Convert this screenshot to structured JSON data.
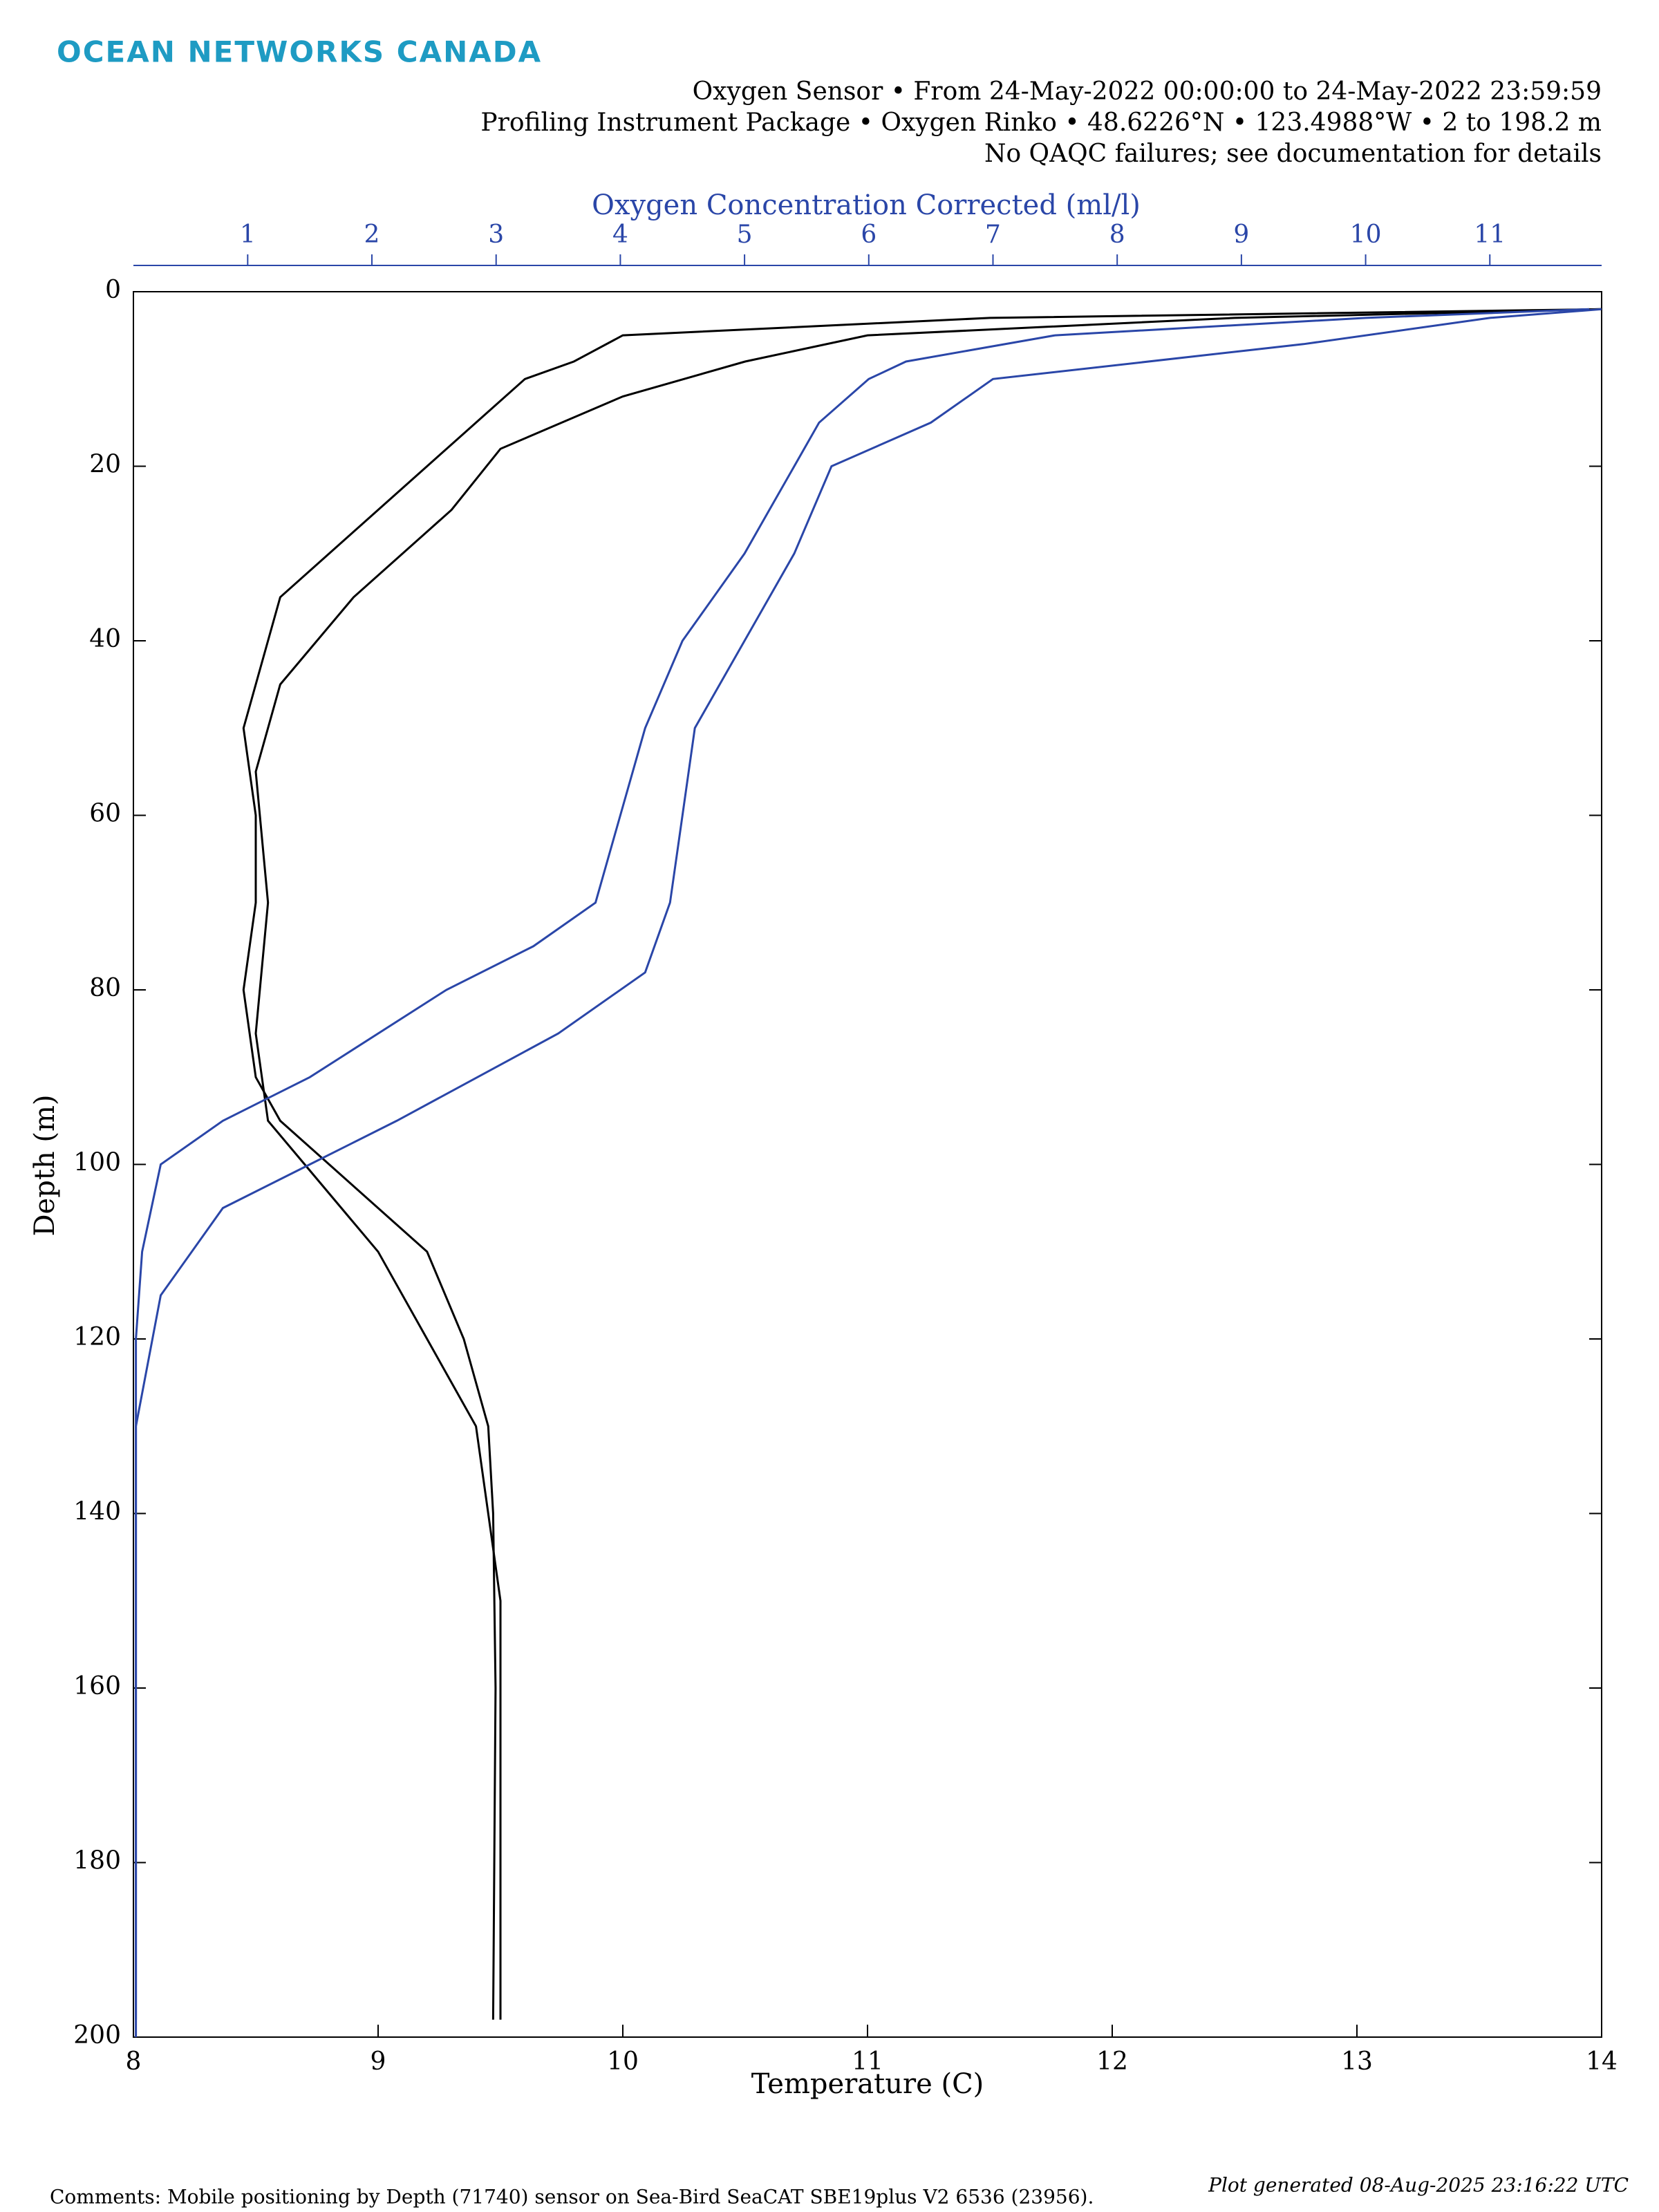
{
  "brand": "OCEAN NETWORKS CANADA",
  "chart_data": {
    "type": "line",
    "subtitle_lines": [
      "Oxygen Sensor • From 24-May-2022 00:00:00 to 24-May-2022 23:59:59",
      "Profiling Instrument Package • Oxygen Rinko • 48.6226°N • 123.4988°W • 2 to 198.2 m",
      "No QAQC failures; see documentation for details"
    ],
    "x_label": "Temperature (C)",
    "x2_label": "Oxygen Concentration Corrected (ml/l)",
    "y_label": "Depth (m)",
    "xlim": [
      8,
      14
    ],
    "xticks": [
      8,
      9,
      10,
      11,
      12,
      13,
      14
    ],
    "x2lim": [
      0.08,
      11.9
    ],
    "x2ticks": [
      1,
      2,
      3,
      4,
      5,
      6,
      7,
      8,
      9,
      10,
      11
    ],
    "ylim": [
      200,
      0
    ],
    "yticks": [
      0,
      20,
      40,
      60,
      80,
      100,
      120,
      140,
      160,
      180,
      200
    ],
    "x2_color": "#2a46a8",
    "series": [
      {
        "color": "#000000",
        "depth": [
          2,
          3,
          5,
          8,
          10,
          15,
          20,
          25,
          30,
          35,
          40,
          50,
          60,
          70,
          80,
          90,
          95,
          100,
          110,
          120,
          130,
          140,
          160,
          198
        ],
        "values": [
          14,
          11.5,
          10,
          9.8,
          9.6,
          9.4,
          9.2,
          9.0,
          8.8,
          8.6,
          8.55,
          8.45,
          8.5,
          8.5,
          8.45,
          8.5,
          8.6,
          8.8,
          9.2,
          9.35,
          9.45,
          9.47,
          9.48,
          9.47
        ]
      },
      {
        "color": "#000000",
        "depth": [
          2,
          3,
          5,
          8,
          12,
          18,
          25,
          35,
          45,
          55,
          70,
          85,
          95,
          100,
          110,
          120,
          130,
          150,
          198
        ],
        "values": [
          14,
          12.5,
          11,
          10.5,
          10,
          9.5,
          9.3,
          8.9,
          8.6,
          8.5,
          8.55,
          8.5,
          8.55,
          8.7,
          9.0,
          9.2,
          9.4,
          9.5,
          9.5
        ]
      },
      {
        "color": "#2a46a8",
        "axis": "x2",
        "depth": [
          2,
          3,
          5,
          8,
          10,
          15,
          20,
          25,
          30,
          40,
          50,
          60,
          70,
          75,
          80,
          90,
          95,
          100,
          110,
          120,
          200
        ],
        "values": [
          11.8,
          10,
          7.5,
          6.3,
          6,
          5.6,
          5.4,
          5.2,
          5.0,
          4.5,
          4.2,
          4.0,
          3.8,
          3.3,
          2.6,
          1.5,
          0.8,
          0.3,
          0.15,
          0.1,
          0.1
        ]
      },
      {
        "color": "#2a46a8",
        "axis": "x2",
        "depth": [
          2,
          3,
          6,
          10,
          15,
          20,
          30,
          40,
          50,
          60,
          70,
          78,
          85,
          95,
          100,
          105,
          115,
          130,
          198
        ],
        "values": [
          11.9,
          11,
          9.5,
          7,
          6.5,
          5.7,
          5.4,
          5.0,
          4.6,
          4.5,
          4.4,
          4.2,
          3.5,
          2.2,
          1.5,
          0.8,
          0.3,
          0.1,
          0.1
        ]
      }
    ],
    "comments": "Comments: Mobile positioning by Depth (71740) sensor on Sea-Bird SeaCAT SBE19plus V2 6536 (23956).",
    "generated": "Plot generated 08-Aug-2025 23:16:22 UTC"
  }
}
